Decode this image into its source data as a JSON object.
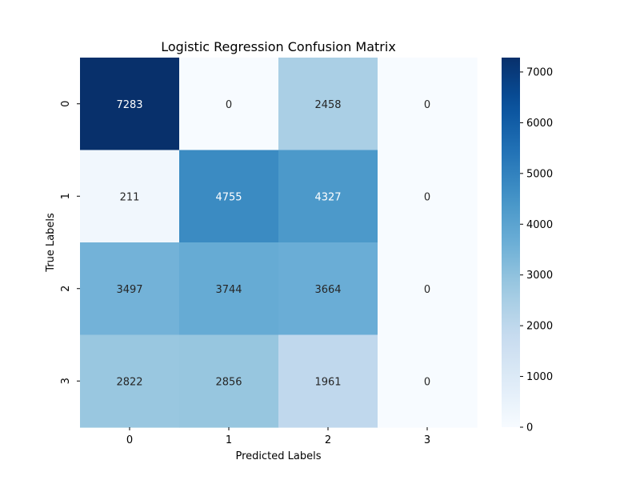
{
  "chart_data": {
    "type": "heatmap",
    "title": "Logistic Regression Confusion Matrix",
    "xlabel": "Predicted Labels",
    "ylabel": "True Labels",
    "x_categories": [
      "0",
      "1",
      "2",
      "3"
    ],
    "y_categories": [
      "0",
      "1",
      "2",
      "3"
    ],
    "values": [
      [
        7283,
        0,
        2458,
        0
      ],
      [
        211,
        4755,
        4327,
        0
      ],
      [
        3497,
        3744,
        3664,
        0
      ],
      [
        2822,
        2856,
        1961,
        0
      ]
    ],
    "colormap": "Blues",
    "colorbar": {
      "min": 0,
      "max": 7283,
      "ticks": [
        0,
        1000,
        2000,
        3000,
        4000,
        5000,
        6000,
        7000
      ]
    }
  }
}
